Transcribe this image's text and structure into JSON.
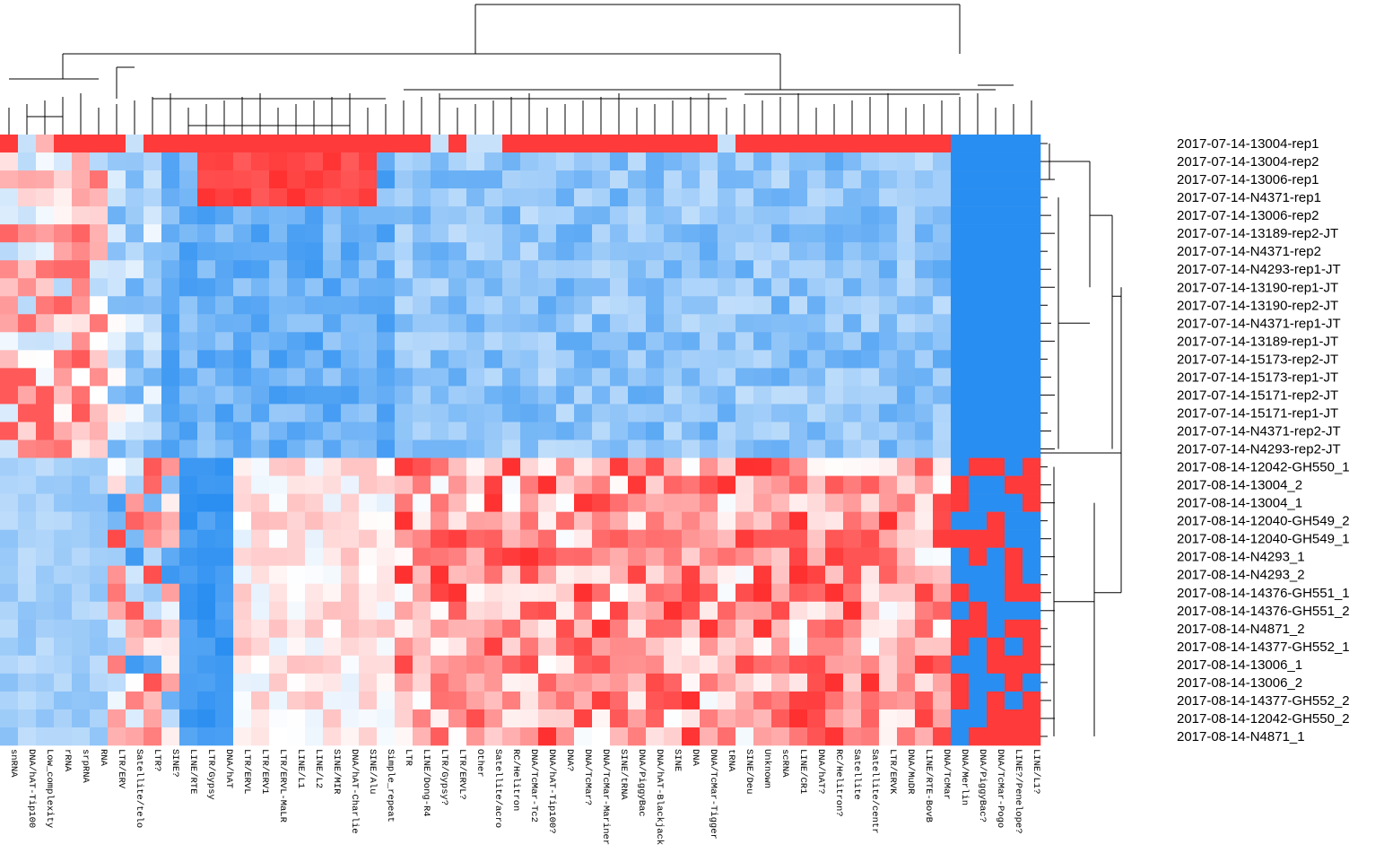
{
  "chart_data": {
    "type": "heatmap",
    "title": "",
    "xlabel": "",
    "ylabel": "",
    "colorscale": {
      "low": "#1e88f0",
      "mid": "#ffffff",
      "high": "#ff3030"
    },
    "value_range": [
      -2,
      2
    ],
    "rows": [
      "2017-07-14-13004-rep1",
      "2017-07-14-13004-rep2",
      "2017-07-14-13006-rep1",
      "2017-07-14-N4371-rep1",
      "2017-07-14-13006-rep2",
      "2017-07-14-13189-rep2-JT",
      "2017-07-14-N4371-rep2",
      "2017-07-14-N4293-rep1-JT",
      "2017-07-14-13190-rep1-JT",
      "2017-07-14-13190-rep2-JT",
      "2017-07-14-N4371-rep1-JT",
      "2017-07-14-13189-rep1-JT",
      "2017-07-14-15173-rep2-JT",
      "2017-07-14-15173-rep1-JT",
      "2017-07-14-15171-rep2-JT",
      "2017-07-14-15171-rep1-JT",
      "2017-07-14-N4371-rep2-JT",
      "2017-07-14-N4293-rep2-JT",
      "2017-08-14-12042-GH550_1",
      "2017-08-14-13004_2",
      "2017-08-14-13004_1",
      "2017-08-14-12040-GH549_2",
      "2017-08-14-12040-GH549_1",
      "2017-08-14-N4293_1",
      "2017-08-14-N4293_2",
      "2017-08-14-14376-GH551_1",
      "2017-08-14-14376-GH551_2",
      "2017-08-14-N4871_2",
      "2017-08-14-14377-GH552_1",
      "2017-08-14-13006_1",
      "2017-08-14-13006_2",
      "2017-08-14-14377-GH552_2",
      "2017-08-14-12042-GH550_2",
      "2017-08-14-N4871_1"
    ],
    "columns": [
      "snRNA",
      "DNA/hAT-Tip100",
      "Low_complexity",
      "rRNA",
      "srpRNA",
      "RNA",
      "LTR/ERV",
      "Satellite/telo",
      "LTR?",
      "SINE?",
      "LINE/RTE",
      "LTR/Gypsy",
      "DNA/hAT",
      "LTR/ERVL",
      "LTR/ERV1",
      "LTR/ERVL-MaLR",
      "LINE/L1",
      "LINE/L2",
      "SINE/MIR",
      "DNA/hAT-Charlie",
      "SINE/Alu",
      "Simple_repeat",
      "LTR",
      "LINE/Dong-R4",
      "LTR/Gypsy?",
      "LTR/ERVL?",
      "Other",
      "Satellite/acro",
      "RC/Helitron",
      "DNA/TcMar-Tc2",
      "DNA/hAT-Tip100?",
      "DNA?",
      "DNA/TcMar?",
      "DNA/TcMar-Mariner",
      "SINE/tRNA",
      "DNA/PiggyBac",
      "DNA/hAT-Blackjack",
      "SINE",
      "DNA",
      "DNA/TcMar-Tigger",
      "tRNA",
      "SINE/Deu",
      "Unknown",
      "scRNA",
      "LINE/CR1",
      "DNA/hAT?",
      "RC/Helitron?",
      "Satellite",
      "Satellite/centr",
      "LTR/ERVK",
      "DNA/MuDR",
      "LINE/RTE-BovB",
      "DNA/TcMar",
      "DNA/Merlin",
      "DNA/PiggyBac?",
      "DNA/TcMar-Pogo",
      "LINE?/Penelope?",
      "LINE/L1?"
    ],
    "values_note_rows": 34,
    "values_note_cols": 58
  }
}
